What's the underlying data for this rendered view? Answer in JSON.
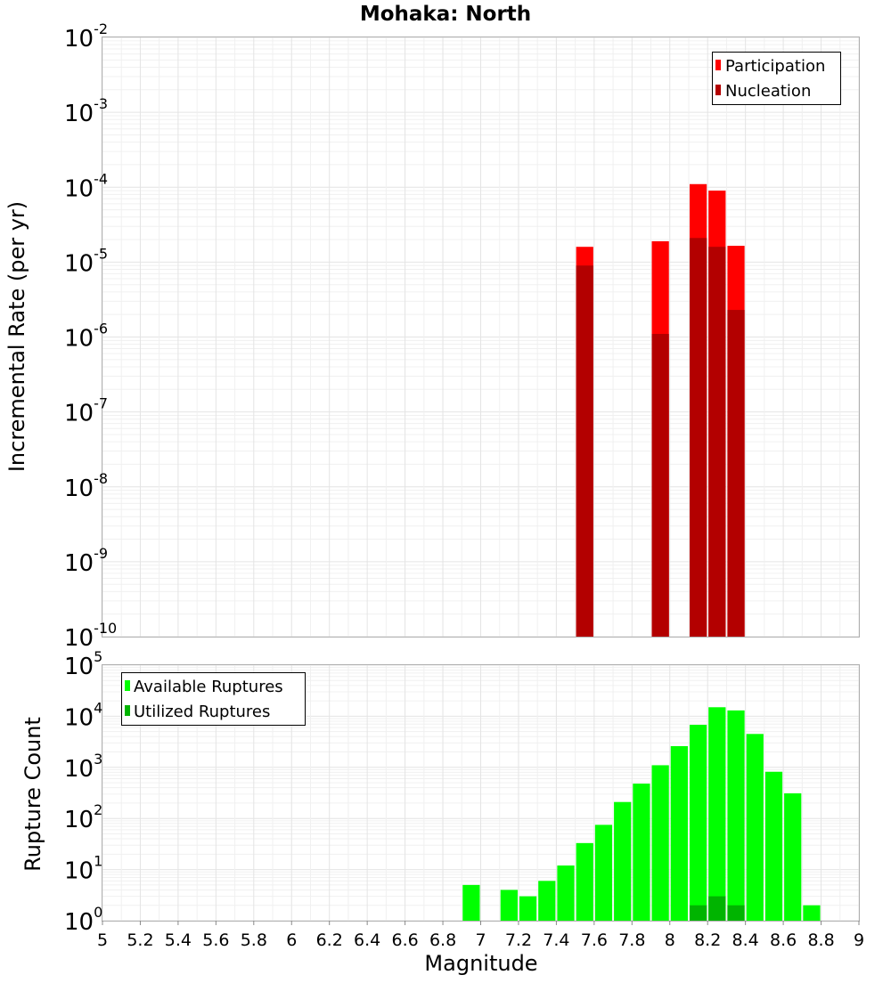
{
  "chart_data": [
    {
      "type": "bar",
      "title": "Mohaka: North",
      "xlabel": "",
      "ylabel": "Incremental Rate (per yr)",
      "yscale": "log",
      "ylim_exp": [
        -10,
        -2
      ],
      "xlim": [
        5,
        9
      ],
      "bin_width": 0.1,
      "legend_position": "top-right",
      "series": [
        {
          "name": "Participation",
          "color": "#ff0000",
          "x": [
            7.55,
            7.95,
            8.15,
            8.25,
            8.35
          ],
          "values": [
            1.6e-05,
            1.9e-05,
            0.00011,
            9e-05,
            1.65e-05
          ]
        },
        {
          "name": "Nucleation",
          "color": "#b30000",
          "x": [
            7.55,
            7.95,
            8.15,
            8.25,
            8.35
          ],
          "values": [
            9e-06,
            1.1e-06,
            2.1e-05,
            1.6e-05,
            2.3e-06
          ]
        }
      ]
    },
    {
      "type": "bar",
      "title": "",
      "xlabel": "Magnitude",
      "ylabel": "Rupture Count",
      "yscale": "log",
      "ylim_exp": [
        0,
        5
      ],
      "xlim": [
        5,
        9
      ],
      "bin_width": 0.1,
      "legend_position": "top-left",
      "x_ticks": [
        "5",
        "5.2",
        "5.4",
        "5.6",
        "5.8",
        "6",
        "6.2",
        "6.4",
        "6.6",
        "6.8",
        "7",
        "7.2",
        "7.4",
        "7.6",
        "7.8",
        "8",
        "8.2",
        "8.4",
        "8.6",
        "8.8",
        "9"
      ],
      "series": [
        {
          "name": "Available Ruptures",
          "color": "#00ff00",
          "x": [
            6.95,
            7.15,
            7.25,
            7.35,
            7.45,
            7.55,
            7.65,
            7.75,
            7.85,
            7.95,
            8.05,
            8.15,
            8.25,
            8.35,
            8.45,
            8.55,
            8.65,
            8.75
          ],
          "values": [
            5,
            4,
            3,
            6,
            12,
            33,
            75,
            210,
            480,
            1100,
            2600,
            6800,
            15000,
            13000,
            4500,
            820,
            310,
            2
          ]
        },
        {
          "name": "Utilized Ruptures",
          "color": "#00b400",
          "x": [
            7.55,
            7.95,
            8.15,
            8.25,
            8.35
          ],
          "values": [
            1,
            1,
            2,
            3,
            2
          ]
        }
      ]
    }
  ]
}
